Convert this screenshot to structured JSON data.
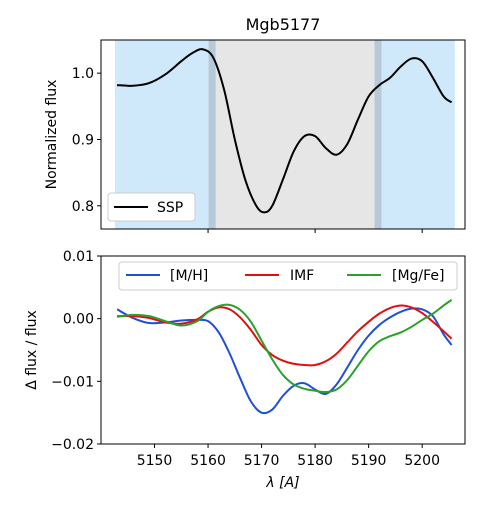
{
  "chart_data": [
    {
      "type": "line",
      "title": "Mgb5177",
      "xlabel": "",
      "ylabel": "Normalized flux",
      "xlim": [
        1540,
        5208
      ],
      "ylim": [
        0.765,
        1.05
      ],
      "yticks": [
        0.8,
        0.9,
        1.0
      ],
      "ytick_labels": [
        "0.8",
        "0.9",
        "1.0"
      ],
      "xticks": [
        5160,
        5180,
        5200
      ],
      "grid": false,
      "legend_position": "lower-left",
      "bands": [
        {
          "name": "blue-continuum",
          "x0": 5142.6,
          "x1": 5161.4,
          "color": "#cfe8fa"
        },
        {
          "name": "feature",
          "x0": 5160.1,
          "x1": 5192.4,
          "color": "#e6e6e6"
        },
        {
          "name": "red-continuum",
          "x0": 5191.1,
          "x1": 5206.1,
          "color": "#cfe8fa"
        }
      ],
      "series": [
        {
          "name": "SSP",
          "color": "#000000",
          "x": [
            5143,
            5146,
            5149,
            5152,
            5155,
            5157,
            5159,
            5161,
            5163,
            5165,
            5167,
            5169,
            5170.5,
            5172,
            5174,
            5176,
            5178,
            5180,
            5182,
            5184,
            5186,
            5188,
            5190,
            5192,
            5194,
            5196,
            5198,
            5200,
            5202,
            5204,
            5205.5
          ],
          "y": [
            0.982,
            0.981,
            0.985,
            0.998,
            1.018,
            1.03,
            1.036,
            1.023,
            0.975,
            0.9,
            0.838,
            0.8,
            0.79,
            0.8,
            0.84,
            0.882,
            0.905,
            0.905,
            0.887,
            0.877,
            0.893,
            0.93,
            0.965,
            0.982,
            0.993,
            1.01,
            1.022,
            1.018,
            0.993,
            0.965,
            0.956
          ]
        }
      ]
    },
    {
      "type": "line",
      "title": "",
      "xlabel": "λ [A]",
      "ylabel": "Δ flux / flux",
      "xlim": [
        5140,
        5208
      ],
      "ylim": [
        -0.02,
        0.01
      ],
      "yticks": [
        -0.02,
        -0.01,
        0.0,
        0.01
      ],
      "ytick_labels": [
        "−0.02",
        "−0.01",
        "0.00",
        "0.01"
      ],
      "xticks": [
        5150,
        5160,
        5170,
        5180,
        5190,
        5200
      ],
      "xtick_labels": [
        "5150",
        "5160",
        "5170",
        "5180",
        "5190",
        "5200"
      ],
      "grid": false,
      "legend_position": "top",
      "series": [
        {
          "name": "[M/H]",
          "color": "#1f4fd8",
          "x": [
            5143,
            5146,
            5149,
            5152,
            5155,
            5158,
            5160,
            5162,
            5164,
            5166,
            5168,
            5170,
            5172,
            5174,
            5176,
            5178,
            5180,
            5182,
            5184,
            5186,
            5188,
            5190,
            5192,
            5194,
            5196,
            5198,
            5200,
            5202,
            5204,
            5205.5
          ],
          "y": [
            0.0015,
            0.0001,
            -0.0007,
            -0.0006,
            -0.0003,
            -0.0002,
            -0.0004,
            -0.0022,
            -0.0055,
            -0.0095,
            -0.0132,
            -0.015,
            -0.0145,
            -0.0123,
            -0.0107,
            -0.0103,
            -0.0113,
            -0.012,
            -0.0105,
            -0.0078,
            -0.005,
            -0.0027,
            -0.001,
            0.0002,
            0.0011,
            0.0016,
            0.0015,
            0.0004,
            -0.0025,
            -0.0042
          ]
        },
        {
          "name": "IMF",
          "color": "#e01010",
          "x": [
            5143,
            5146,
            5149,
            5152,
            5155,
            5158,
            5160,
            5162,
            5164,
            5166,
            5168,
            5170,
            5172,
            5174,
            5176,
            5178,
            5180,
            5182,
            5184,
            5186,
            5188,
            5190,
            5192,
            5194,
            5196,
            5198,
            5200,
            5202,
            5204,
            5205.5
          ],
          "y": [
            0.0004,
            0.0004,
            0.0001,
            -0.0006,
            -0.0008,
            -0.0001,
            0.0011,
            0.0018,
            0.0015,
            0.0002,
            -0.0018,
            -0.0042,
            -0.0058,
            -0.0067,
            -0.0072,
            -0.0074,
            -0.0074,
            -0.0068,
            -0.0056,
            -0.0038,
            -0.002,
            -0.0005,
            0.0008,
            0.0017,
            0.0021,
            0.0018,
            0.0009,
            -0.0005,
            -0.002,
            -0.0032
          ]
        },
        {
          "name": "[Mg/Fe]",
          "color": "#2ca02c",
          "x": [
            5143,
            5146,
            5149,
            5152,
            5155,
            5158,
            5160,
            5162,
            5164,
            5166,
            5168,
            5170,
            5172,
            5174,
            5176,
            5178,
            5180,
            5182,
            5184,
            5186,
            5188,
            5190,
            5192,
            5194,
            5196,
            5198,
            5200,
            5202,
            5204,
            5205.5
          ],
          "y": [
            0.0003,
            0.0006,
            0.0004,
            -0.0004,
            -0.0011,
            -0.0004,
            0.0011,
            0.002,
            0.0022,
            0.0014,
            -0.0005,
            -0.0035,
            -0.0065,
            -0.009,
            -0.0105,
            -0.0112,
            -0.0115,
            -0.0117,
            -0.0113,
            -0.0098,
            -0.0075,
            -0.0052,
            -0.0036,
            -0.0028,
            -0.0022,
            -0.0013,
            -0.0002,
            0.0008,
            0.0021,
            0.003
          ]
        }
      ]
    }
  ]
}
